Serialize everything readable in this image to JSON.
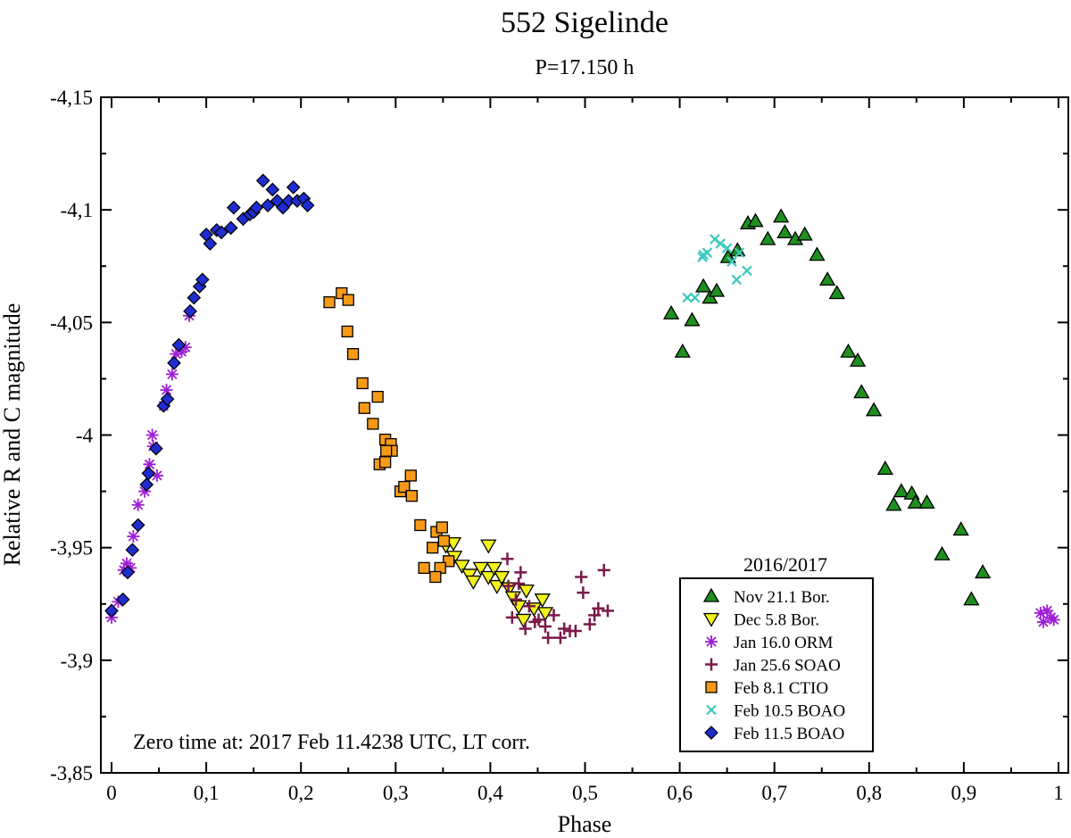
{
  "chart_data": {
    "type": "scatter",
    "title": "552 Sigelinde",
    "subtitle": "P=17.150 h",
    "xlabel": "Phase",
    "ylabel": "Relative R and C magnitude",
    "xlim": [
      0,
      1
    ],
    "ylim": [
      -3.85,
      -4.15
    ],
    "y_inverted": true,
    "grid": false,
    "x_ticks": [
      {
        "value": 0,
        "label": "0"
      },
      {
        "value": 0.1,
        "label": "0,1"
      },
      {
        "value": 0.2,
        "label": "0,2"
      },
      {
        "value": 0.3,
        "label": "0,3"
      },
      {
        "value": 0.4,
        "label": "0,4"
      },
      {
        "value": 0.5,
        "label": "0,5"
      },
      {
        "value": 0.6,
        "label": "0,6"
      },
      {
        "value": 0.7,
        "label": "0,7"
      },
      {
        "value": 0.8,
        "label": "0,8"
      },
      {
        "value": 0.9,
        "label": "0,9"
      },
      {
        "value": 1,
        "label": "1"
      }
    ],
    "y_ticks": [
      {
        "value": -4.15,
        "label": "-4,15"
      },
      {
        "value": -4.1,
        "label": "-4,1"
      },
      {
        "value": -4.05,
        "label": "-4,05"
      },
      {
        "value": -4.0,
        "label": "-4"
      },
      {
        "value": -3.95,
        "label": "-3,95"
      },
      {
        "value": -3.9,
        "label": "-3,9"
      },
      {
        "value": -3.85,
        "label": "-3,85"
      }
    ],
    "annotation": "Zero time at: 2017 Feb 11.4238 UTC, LT corr.",
    "legend": {
      "title": "2016/2017",
      "position": "bottom-right"
    },
    "series": [
      {
        "name": "Nov 21.1 Bor.",
        "marker": "triangle-up",
        "color": "#1f8f1f",
        "points": [
          [
            0.591,
            -4.054
          ],
          [
            0.603,
            -4.037
          ],
          [
            0.613,
            -4.051
          ],
          [
            0.625,
            -4.066
          ],
          [
            0.632,
            -4.061
          ],
          [
            0.639,
            -4.064
          ],
          [
            0.651,
            -4.079
          ],
          [
            0.661,
            -4.082
          ],
          [
            0.672,
            -4.094
          ],
          [
            0.68,
            -4.095
          ],
          [
            0.693,
            -4.087
          ],
          [
            0.707,
            -4.097
          ],
          [
            0.711,
            -4.09
          ],
          [
            0.722,
            -4.087
          ],
          [
            0.732,
            -4.089
          ],
          [
            0.745,
            -4.08
          ],
          [
            0.756,
            -4.069
          ],
          [
            0.766,
            -4.063
          ],
          [
            0.778,
            -4.037
          ],
          [
            0.788,
            -4.033
          ],
          [
            0.792,
            -4.019
          ],
          [
            0.805,
            -4.011
          ],
          [
            0.817,
            -3.985
          ],
          [
            0.826,
            -3.969
          ],
          [
            0.834,
            -3.975
          ],
          [
            0.845,
            -3.974
          ],
          [
            0.849,
            -3.97
          ],
          [
            0.861,
            -3.97
          ],
          [
            0.877,
            -3.947
          ],
          [
            0.897,
            -3.958
          ],
          [
            0.908,
            -3.927
          ],
          [
            0.92,
            -3.939
          ]
        ]
      },
      {
        "name": "Dec 5.8 Bor.",
        "marker": "triangle-down",
        "color": "#f2f21c",
        "points": [
          [
            0.353,
            -3.951
          ],
          [
            0.362,
            -3.946
          ],
          [
            0.37,
            -3.942
          ],
          [
            0.378,
            -3.938
          ],
          [
            0.382,
            -3.935
          ],
          [
            0.39,
            -3.941
          ],
          [
            0.398,
            -3.937
          ],
          [
            0.404,
            -3.941
          ],
          [
            0.407,
            -3.933
          ],
          [
            0.412,
            -3.937
          ],
          [
            0.42,
            -3.932
          ],
          [
            0.424,
            -3.928
          ],
          [
            0.43,
            -3.924
          ],
          [
            0.435,
            -3.918
          ],
          [
            0.438,
            -3.931
          ],
          [
            0.446,
            -3.923
          ],
          [
            0.455,
            -3.927
          ],
          [
            0.458,
            -3.921
          ],
          [
            0.398,
            -3.951
          ],
          [
            0.361,
            -3.952
          ]
        ]
      },
      {
        "name": "Jan 16.0 ORM",
        "marker": "asterisk",
        "color": "#9d1fd6",
        "points": [
          [
            0.0,
            -3.919
          ],
          [
            0.007,
            -3.926
          ],
          [
            0.013,
            -3.94
          ],
          [
            0.016,
            -3.943
          ],
          [
            0.02,
            -3.941
          ],
          [
            0.023,
            -3.955
          ],
          [
            0.028,
            -3.969
          ],
          [
            0.035,
            -3.975
          ],
          [
            0.04,
            -3.987
          ],
          [
            0.044,
            -3.995
          ],
          [
            0.048,
            -3.982
          ],
          [
            0.043,
            -4.0
          ],
          [
            0.055,
            -4.013
          ],
          [
            0.058,
            -4.02
          ],
          [
            0.064,
            -4.027
          ],
          [
            0.068,
            -4.036
          ],
          [
            0.074,
            -4.037
          ],
          [
            0.078,
            -4.039
          ],
          [
            0.082,
            -4.053
          ],
          [
            0.984,
            -3.917
          ],
          [
            0.988,
            -3.922
          ],
          [
            0.992,
            -3.919
          ],
          [
            0.995,
            -3.918
          ],
          [
            0.981,
            -3.921
          ]
        ]
      },
      {
        "name": "Jan 25.6 SOAO",
        "marker": "plus",
        "color": "#7a1a4a",
        "points": [
          [
            0.419,
            -3.933
          ],
          [
            0.423,
            -3.919
          ],
          [
            0.427,
            -3.927
          ],
          [
            0.432,
            -3.939
          ],
          [
            0.437,
            -3.914
          ],
          [
            0.441,
            -3.924
          ],
          [
            0.447,
            -3.917
          ],
          [
            0.451,
            -3.918
          ],
          [
            0.458,
            -3.915
          ],
          [
            0.461,
            -3.91
          ],
          [
            0.467,
            -3.92
          ],
          [
            0.474,
            -3.91
          ],
          [
            0.478,
            -3.914
          ],
          [
            0.484,
            -3.913
          ],
          [
            0.49,
            -3.913
          ],
          [
            0.498,
            -3.93
          ],
          [
            0.505,
            -3.916
          ],
          [
            0.51,
            -3.92
          ],
          [
            0.514,
            -3.923
          ],
          [
            0.52,
            -3.94
          ],
          [
            0.524,
            -3.922
          ],
          [
            0.496,
            -3.937
          ],
          [
            0.418,
            -3.945
          ],
          [
            0.43,
            -3.934
          ]
        ]
      },
      {
        "name": "Feb 8.1 CTIO",
        "marker": "square",
        "color": "#f79a16",
        "points": [
          [
            0.23,
            -4.059
          ],
          [
            0.243,
            -4.063
          ],
          [
            0.25,
            -4.06
          ],
          [
            0.249,
            -4.046
          ],
          [
            0.255,
            -4.036
          ],
          [
            0.265,
            -4.023
          ],
          [
            0.281,
            -4.017
          ],
          [
            0.267,
            -4.012
          ],
          [
            0.276,
            -4.005
          ],
          [
            0.289,
            -3.998
          ],
          [
            0.295,
            -3.996
          ],
          [
            0.283,
            -3.987
          ],
          [
            0.289,
            -3.988
          ],
          [
            0.296,
            -3.993
          ],
          [
            0.305,
            -3.975
          ],
          [
            0.309,
            -3.977
          ],
          [
            0.316,
            -3.982
          ],
          [
            0.326,
            -3.96
          ],
          [
            0.317,
            -3.973
          ],
          [
            0.339,
            -3.95
          ],
          [
            0.343,
            -3.957
          ],
          [
            0.351,
            -3.953
          ],
          [
            0.349,
            -3.959
          ],
          [
            0.356,
            -3.944
          ],
          [
            0.33,
            -3.941
          ],
          [
            0.347,
            -3.941
          ],
          [
            0.342,
            -3.937
          ],
          [
            0.29,
            -3.993
          ]
        ]
      },
      {
        "name": "Feb 10.5 BOAO",
        "marker": "x",
        "color": "#3cc8c0",
        "points": [
          [
            0.608,
            -4.061
          ],
          [
            0.616,
            -4.061
          ],
          [
            0.624,
            -4.079
          ],
          [
            0.629,
            -4.081
          ],
          [
            0.637,
            -4.087
          ],
          [
            0.643,
            -4.085
          ],
          [
            0.65,
            -4.083
          ],
          [
            0.655,
            -4.077
          ],
          [
            0.66,
            -4.069
          ],
          [
            0.663,
            -4.081
          ],
          [
            0.671,
            -4.073
          ],
          [
            0.625,
            -4.08
          ]
        ]
      },
      {
        "name": "Feb 11.5 BOAO",
        "marker": "diamond",
        "color": "#1f2dd0",
        "points": [
          [
            0.0,
            -3.922
          ],
          [
            0.012,
            -3.927
          ],
          [
            0.017,
            -3.939
          ],
          [
            0.022,
            -3.949
          ],
          [
            0.028,
            -3.96
          ],
          [
            0.037,
            -3.978
          ],
          [
            0.039,
            -3.983
          ],
          [
            0.047,
            -3.994
          ],
          [
            0.055,
            -4.013
          ],
          [
            0.059,
            -4.016
          ],
          [
            0.066,
            -4.032
          ],
          [
            0.071,
            -4.04
          ],
          [
            0.083,
            -4.055
          ],
          [
            0.087,
            -4.061
          ],
          [
            0.093,
            -4.066
          ],
          [
            0.096,
            -4.069
          ],
          [
            0.1,
            -4.089
          ],
          [
            0.104,
            -4.085
          ],
          [
            0.111,
            -4.091
          ],
          [
            0.116,
            -4.09
          ],
          [
            0.126,
            -4.092
          ],
          [
            0.129,
            -4.101
          ],
          [
            0.139,
            -4.096
          ],
          [
            0.146,
            -4.098
          ],
          [
            0.15,
            -4.099
          ],
          [
            0.153,
            -4.101
          ],
          [
            0.16,
            -4.113
          ],
          [
            0.165,
            -4.102
          ],
          [
            0.17,
            -4.109
          ],
          [
            0.175,
            -4.104
          ],
          [
            0.181,
            -4.101
          ],
          [
            0.187,
            -4.104
          ],
          [
            0.192,
            -4.11
          ],
          [
            0.196,
            -4.104
          ],
          [
            0.203,
            -4.105
          ],
          [
            0.207,
            -4.102
          ]
        ]
      }
    ]
  }
}
